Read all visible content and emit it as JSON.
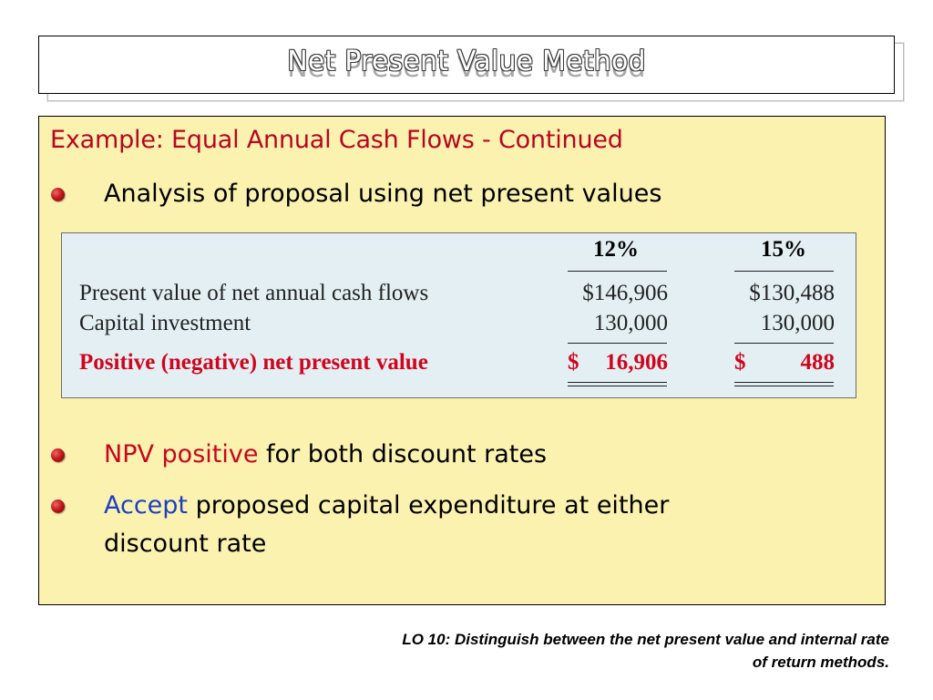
{
  "title": "Net Present Value Method",
  "subtitle": "Example: Equal Annual Cash Flows - Continued",
  "bullets": {
    "b1": "Analysis of proposal using net present values",
    "b2_npv": "NPV",
    "b2_positive": "positive",
    "b2_rest": "for both discount rates",
    "b3_accept": "Accept",
    "b3_rest": "proposed capital expenditure at either",
    "b3_line2": "discount rate"
  },
  "table": {
    "col_headers": [
      "12%",
      "15%"
    ],
    "rows": [
      {
        "label": "Present value of net annual cash flows",
        "v12": "$146,906",
        "v15": "$130,488"
      },
      {
        "label": "Capital investment",
        "v12": "130,000",
        "v15": "130,000"
      },
      {
        "label": "Positive (negative) net present value",
        "v12_sym": "$",
        "v12": "16,906",
        "v15_sym": "$",
        "v15": "488"
      }
    ]
  },
  "footer": {
    "line1": "LO 10:  Distinguish between the net present value and internal rate",
    "line2": "of return methods."
  },
  "colors": {
    "panel_bg": "#fbf2b0",
    "heading_red": "#b8061f",
    "accept_blue": "#1c3fc4",
    "table_bg": "#e3eff3"
  },
  "icons": [
    "red-sphere-bullet-icon"
  ]
}
